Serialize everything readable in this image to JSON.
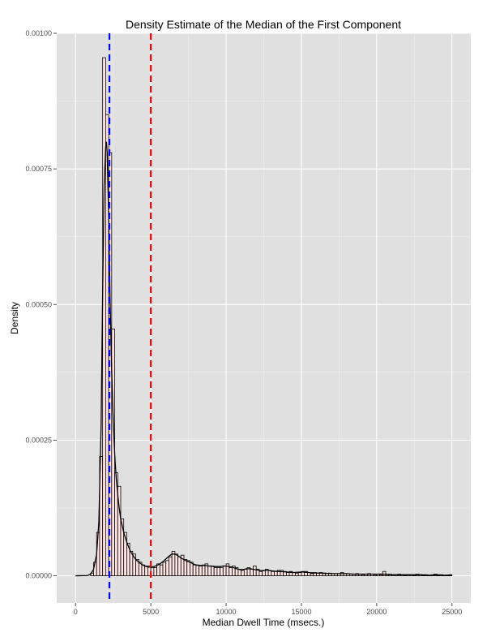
{
  "chart_data": {
    "type": "histogram",
    "title": "Density Estimate of the Median of the First Component",
    "xlabel": "Median Dwell Time (msecs.)",
    "ylabel": "Density",
    "xlim": [
      -1250,
      26250
    ],
    "ylim": [
      -5e-05,
      0.001
    ],
    "x_ticks": [
      0,
      5000,
      10000,
      15000,
      20000,
      25000
    ],
    "x_tick_labels": [
      "0",
      "5000",
      "10000",
      "15000",
      "20000",
      "25000"
    ],
    "y_ticks": [
      0,
      0.00025,
      0.0005,
      0.00075,
      0.001
    ],
    "y_tick_labels": [
      "0.00000",
      "0.00025",
      "0.00050",
      "0.00075",
      "0.00100"
    ],
    "grid": true,
    "panel_background": "#e0e0e0",
    "grid_color": "#ffffff",
    "vlines": [
      {
        "x": 2250,
        "color": "#0000ff",
        "style": "dashed"
      },
      {
        "x": 5000,
        "color": "#ff0000",
        "style": "dashed"
      }
    ],
    "histogram": {
      "bin_width": 200,
      "bins": [
        [
          1000,
          5e-06
        ],
        [
          1200,
          2.5e-05
        ],
        [
          1400,
          8e-05
        ],
        [
          1600,
          0.00022
        ],
        [
          1800,
          0.000955
        ],
        [
          2000,
          0.00085
        ],
        [
          2200,
          0.00078
        ],
        [
          2400,
          0.000455
        ],
        [
          2600,
          0.00019
        ],
        [
          2800,
          0.000165
        ],
        [
          3000,
          0.000105
        ],
        [
          3200,
          8e-05
        ],
        [
          3400,
          6e-05
        ],
        [
          3600,
          4.5e-05
        ],
        [
          3800,
          4e-05
        ],
        [
          4000,
          3e-05
        ],
        [
          4200,
          2.5e-05
        ],
        [
          4400,
          2e-05
        ],
        [
          4600,
          1.8e-05
        ],
        [
          4800,
          1.8e-05
        ],
        [
          5000,
          1.5e-05
        ],
        [
          5200,
          1.5e-05
        ],
        [
          5400,
          2.2e-05
        ],
        [
          5600,
          2e-05
        ],
        [
          5800,
          2.5e-05
        ],
        [
          6000,
          2.8e-05
        ],
        [
          6200,
          3.5e-05
        ],
        [
          6400,
          4.5e-05
        ],
        [
          6600,
          4e-05
        ],
        [
          6800,
          3.5e-05
        ],
        [
          7000,
          3.8e-05
        ],
        [
          7200,
          3e-05
        ],
        [
          7400,
          2.8e-05
        ],
        [
          7600,
          2.5e-05
        ],
        [
          7800,
          2e-05
        ],
        [
          8000,
          2e-05
        ],
        [
          8200,
          1.8e-05
        ],
        [
          8400,
          2e-05
        ],
        [
          8600,
          2.2e-05
        ],
        [
          8800,
          1.8e-05
        ],
        [
          9000,
          1.8e-05
        ],
        [
          9200,
          1.5e-05
        ],
        [
          9400,
          1.5e-05
        ],
        [
          9600,
          1.5e-05
        ],
        [
          9800,
          1.8e-05
        ],
        [
          10000,
          2.2e-05
        ],
        [
          10200,
          1.5e-05
        ],
        [
          10400,
          1.8e-05
        ],
        [
          10600,
          1.5e-05
        ],
        [
          10800,
          1.2e-05
        ],
        [
          11000,
          1e-05
        ],
        [
          11200,
          1.2e-05
        ],
        [
          11400,
          1.5e-05
        ],
        [
          11600,
          1.2e-05
        ],
        [
          11800,
          1.8e-05
        ],
        [
          12000,
          1.2e-05
        ],
        [
          12200,
          8e-06
        ],
        [
          12400,
          1e-05
        ],
        [
          12600,
          1.2e-05
        ],
        [
          12800,
          1e-05
        ],
        [
          13000,
          8e-06
        ],
        [
          13200,
          8e-06
        ],
        [
          13400,
          1e-05
        ],
        [
          13600,
          1e-05
        ],
        [
          13800,
          8e-06
        ],
        [
          14000,
          6e-06
        ],
        [
          14200,
          8e-06
        ],
        [
          14400,
          6e-06
        ],
        [
          14600,
          5e-06
        ],
        [
          14800,
          6e-06
        ],
        [
          15000,
          8e-06
        ],
        [
          15200,
          8e-06
        ],
        [
          15400,
          6e-06
        ],
        [
          15600,
          4e-06
        ],
        [
          15800,
          6e-06
        ],
        [
          16000,
          5e-06
        ],
        [
          16200,
          6e-06
        ],
        [
          16400,
          4e-06
        ],
        [
          16600,
          4e-06
        ],
        [
          16800,
          5e-06
        ],
        [
          17000,
          4e-06
        ],
        [
          17200,
          4e-06
        ],
        [
          17400,
          4e-06
        ],
        [
          17600,
          6e-06
        ],
        [
          17800,
          4e-06
        ],
        [
          18000,
          4e-06
        ],
        [
          18200,
          3e-06
        ],
        [
          18400,
          3e-06
        ],
        [
          18600,
          4e-06
        ],
        [
          18800,
          3e-06
        ],
        [
          19000,
          2e-06
        ],
        [
          19200,
          3e-06
        ],
        [
          19400,
          4e-06
        ],
        [
          19600,
          3e-06
        ],
        [
          19800,
          2e-06
        ],
        [
          20000,
          3e-06
        ],
        [
          20200,
          2e-06
        ],
        [
          20400,
          8e-06
        ],
        [
          20600,
          2e-06
        ],
        [
          20800,
          3e-06
        ],
        [
          21000,
          2e-06
        ],
        [
          21200,
          2e-06
        ],
        [
          21400,
          3e-06
        ],
        [
          21600,
          2e-06
        ],
        [
          21800,
          1e-06
        ],
        [
          22000,
          2e-06
        ],
        [
          22200,
          2e-06
        ],
        [
          22400,
          1e-06
        ],
        [
          22600,
          3e-06
        ],
        [
          22800,
          2e-06
        ],
        [
          23000,
          1e-06
        ],
        [
          23200,
          2e-06
        ],
        [
          23400,
          1e-06
        ],
        [
          23600,
          2e-06
        ],
        [
          23800,
          3e-06
        ],
        [
          24000,
          1e-06
        ],
        [
          24200,
          2e-06
        ],
        [
          24400,
          1e-06
        ],
        [
          24600,
          1e-06
        ],
        [
          24800,
          2e-06
        ]
      ],
      "fill": "#ffe2e2",
      "stroke": "#000000"
    },
    "density_curve": {
      "x": [
        0,
        800,
        1000,
        1200,
        1400,
        1550,
        1700,
        1800,
        1900,
        2000,
        2050,
        2100,
        2200,
        2300,
        2400,
        2500,
        2600,
        2700,
        2800,
        2900,
        3000,
        3200,
        3400,
        3600,
        3800,
        4000,
        4200,
        4400,
        4600,
        4800,
        5000,
        5200,
        5400,
        5600,
        5800,
        6000,
        6200,
        6400,
        6600,
        6800,
        7000,
        7200,
        7400,
        7600,
        7800,
        8000,
        8200,
        8400,
        8600,
        8800,
        9000,
        9200,
        9400,
        9600,
        9800,
        10000,
        10200,
        10400,
        10600,
        10800,
        11000,
        11200,
        11400,
        11600,
        11800,
        12000,
        12200,
        12400,
        12600,
        12800,
        13000,
        13500,
        14000,
        14500,
        15000,
        15500,
        16000,
        16500,
        17000,
        17500,
        18000,
        18500,
        19000,
        19500,
        20000,
        20500,
        21000,
        21500,
        22000,
        22500,
        23000,
        23500,
        24000,
        24500,
        25000
      ],
      "y": [
        0,
        5e-07,
        3e-06,
        1.2e-05,
        4e-05,
        0.0001,
        0.00028,
        0.00052,
        0.00072,
        0.00079,
        0.0008,
        0.00078,
        0.00066,
        0.0005,
        0.00038,
        0.00029,
        0.000225,
        0.00018,
        0.00015,
        0.000125,
        0.000105,
        8e-05,
        6.2e-05,
        4.8e-05,
        3.8e-05,
        3e-05,
        2.5e-05,
        2.1e-05,
        1.8e-05,
        1.6e-05,
        1.6e-05,
        1.7e-05,
        1.9e-05,
        2.2e-05,
        2.6e-05,
        3.1e-05,
        3.6e-05,
        4e-05,
        4e-05,
        3.7e-05,
        3.3e-05,
        3e-05,
        2.7e-05,
        2.5e-05,
        2.2e-05,
        2e-05,
        1.9e-05,
        1.9e-05,
        1.9e-05,
        1.8e-05,
        1.8e-05,
        1.7e-05,
        1.7e-05,
        1.7e-05,
        1.8e-05,
        1.8e-05,
        1.7e-05,
        1.6e-05,
        1.4e-05,
        1.2e-05,
        1.1e-05,
        1.2e-05,
        1.3e-05,
        1.3e-05,
        1.2e-05,
        1.1e-05,
        1e-05,
        9e-06,
        1e-05,
        1e-05,
        9e-06,
        8e-06,
        7e-06,
        6e-06,
        7e-06,
        6e-06,
        5e-06,
        5e-06,
        4e-06,
        4e-06,
        4e-06,
        3e-06,
        3e-06,
        3e-06,
        3e-06,
        3e-06,
        2e-06,
        2e-06,
        2e-06,
        2e-06,
        2e-06,
        1e-06,
        2e-06,
        1e-06,
        1.5e-06
      ],
      "stroke": "#000000"
    }
  }
}
